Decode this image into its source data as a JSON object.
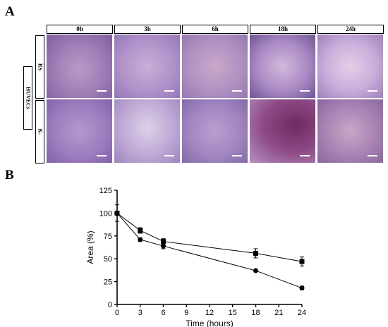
{
  "panel_a": {
    "letter": "A",
    "columns": [
      "0h",
      "3h",
      "6h",
      "18h",
      "24h"
    ],
    "group_label": "HUVECs",
    "rows": [
      "RS",
      "K-"
    ]
  },
  "panel_b": {
    "letter": "B"
  },
  "chart_data": {
    "type": "line",
    "xlabel": "Time (hours)",
    "ylabel": "Area (%)",
    "xlim": [
      0,
      24
    ],
    "ylim": [
      0,
      125
    ],
    "xticks": [
      0,
      3,
      6,
      9,
      12,
      15,
      18,
      21,
      24
    ],
    "yticks": [
      0,
      25,
      50,
      75,
      100,
      125
    ],
    "grid": false,
    "x": [
      0,
      3,
      6,
      18,
      24
    ],
    "series": [
      {
        "marker": "square",
        "values": [
          100,
          81,
          69,
          56,
          47
        ],
        "errors": [
          9,
          3,
          3,
          5,
          5
        ]
      },
      {
        "marker": "circle",
        "values": [
          100,
          71,
          64,
          37,
          18
        ],
        "errors": [
          2,
          2,
          3,
          1,
          2
        ]
      }
    ]
  }
}
